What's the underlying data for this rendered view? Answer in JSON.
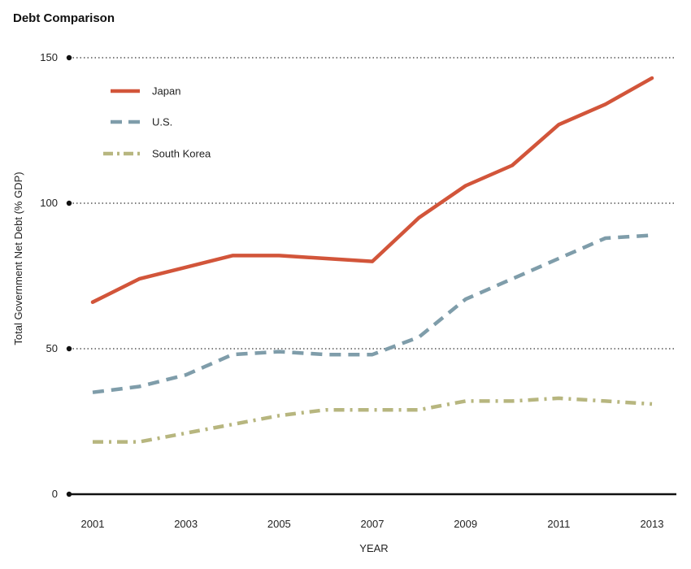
{
  "chart_data": {
    "type": "line",
    "title": "Debt Comparison",
    "xlabel": "YEAR",
    "ylabel": "Total Government Net Debt (% GDP)",
    "x": [
      2001,
      2002,
      2003,
      2004,
      2005,
      2006,
      2007,
      2008,
      2009,
      2010,
      2011,
      2012,
      2013
    ],
    "x_ticks": [
      "2001",
      "2003",
      "2005",
      "2007",
      "2009",
      "2011",
      "2013"
    ],
    "y_ticks": [
      "0",
      "50",
      "100",
      "150"
    ],
    "ylim": [
      0,
      150
    ],
    "xlim": [
      2001,
      2013
    ],
    "grid": "horizontal dotted",
    "legend_position": "top-left",
    "series": [
      {
        "name": "Japan",
        "color": "#d2553a",
        "style": "solid",
        "values": [
          66,
          74,
          78,
          82,
          82,
          81,
          80,
          95,
          106,
          113,
          127,
          134,
          143
        ]
      },
      {
        "name": "U.S.",
        "color": "#7f9daa",
        "style": "dashed",
        "values": [
          35,
          37,
          41,
          48,
          49,
          48,
          48,
          54,
          67,
          74,
          81,
          88,
          89
        ]
      },
      {
        "name": "South Korea",
        "color": "#b7b67f",
        "style": "dashdot",
        "values": [
          18,
          18,
          21,
          24,
          27,
          29,
          29,
          29,
          32,
          32,
          33,
          32,
          31
        ]
      }
    ]
  }
}
